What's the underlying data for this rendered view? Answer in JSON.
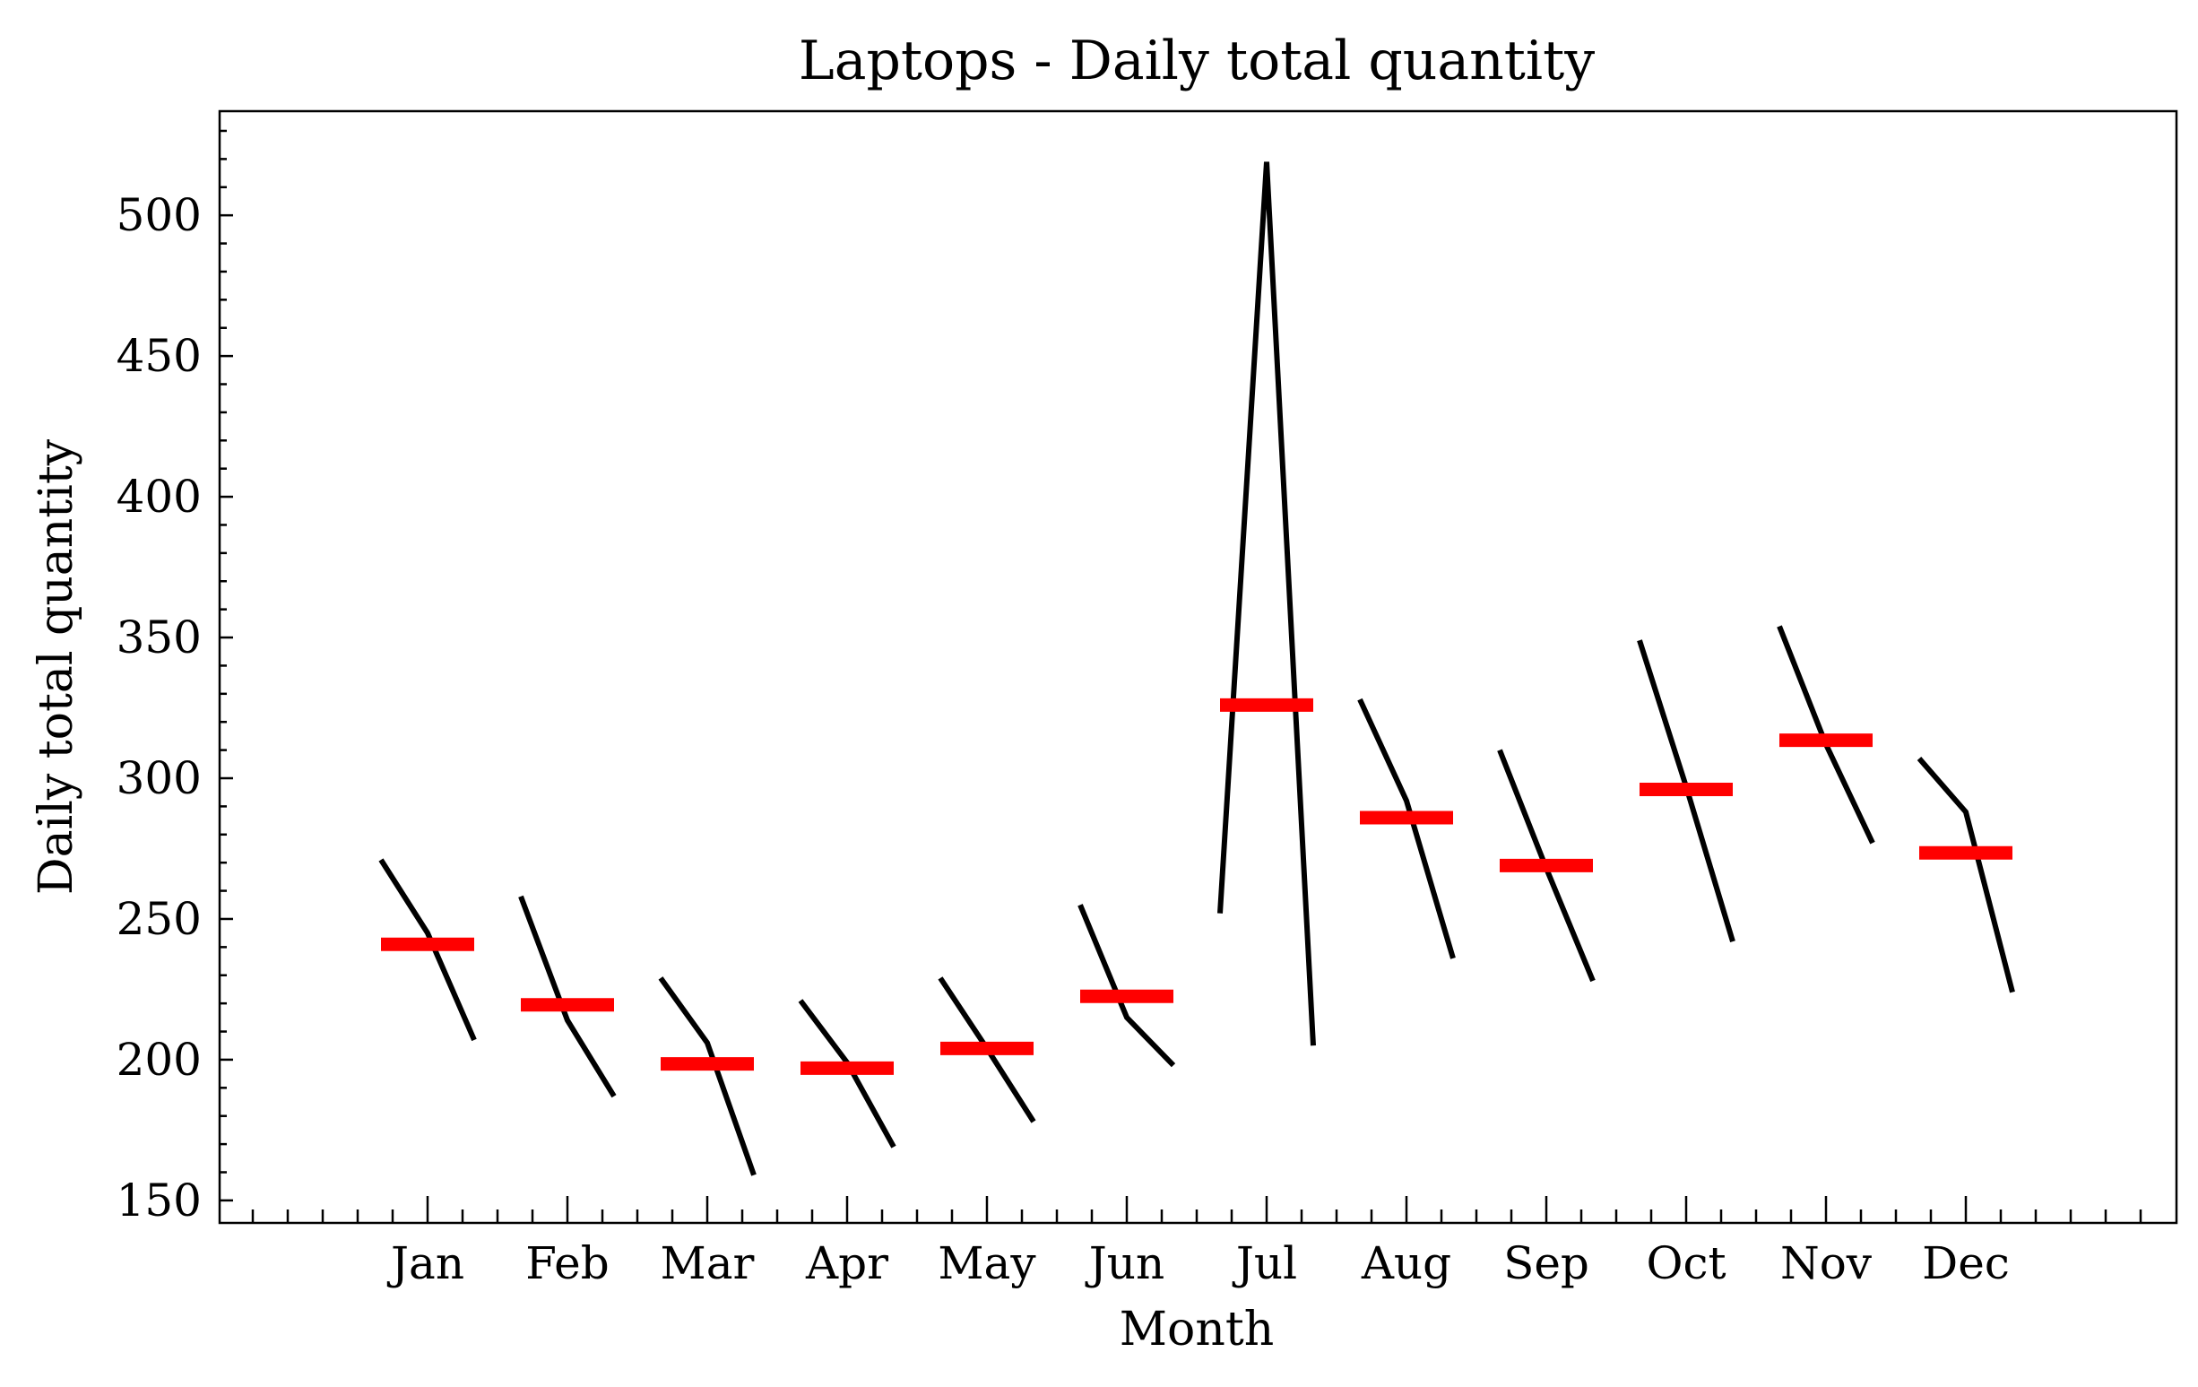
{
  "chart_data": {
    "type": "line",
    "title": "Laptops - Daily total quantity",
    "xlabel": "Month",
    "ylabel": "Daily total quantity",
    "categories": [
      "Jan",
      "Feb",
      "Mar",
      "Apr",
      "May",
      "Jun",
      "Jul",
      "Aug",
      "Sep",
      "Oct",
      "Nov",
      "Dec"
    ],
    "ylim": [
      142,
      537
    ],
    "yticks": [
      150,
      200,
      250,
      300,
      350,
      400,
      450,
      500
    ],
    "grid": false,
    "legend": "none",
    "colors": {
      "series_line": "#000000",
      "mean_bar": "#ff0000"
    },
    "sub_series": [
      [
        271,
        245,
        207
      ],
      [
        258,
        214,
        187
      ],
      [
        229,
        206,
        159
      ],
      [
        221,
        199,
        169
      ],
      [
        229,
        204,
        178
      ],
      [
        255,
        215,
        198
      ],
      [
        252,
        519,
        205
      ],
      [
        328,
        292,
        236
      ],
      [
        310,
        268,
        228
      ],
      [
        349,
        297,
        242
      ],
      [
        354,
        312,
        277
      ],
      [
        307,
        288,
        224
      ]
    ],
    "means": [
      241,
      219.5,
      198.5,
      197,
      204,
      222.5,
      326,
      286,
      269,
      296,
      313.5,
      273.5
    ]
  }
}
